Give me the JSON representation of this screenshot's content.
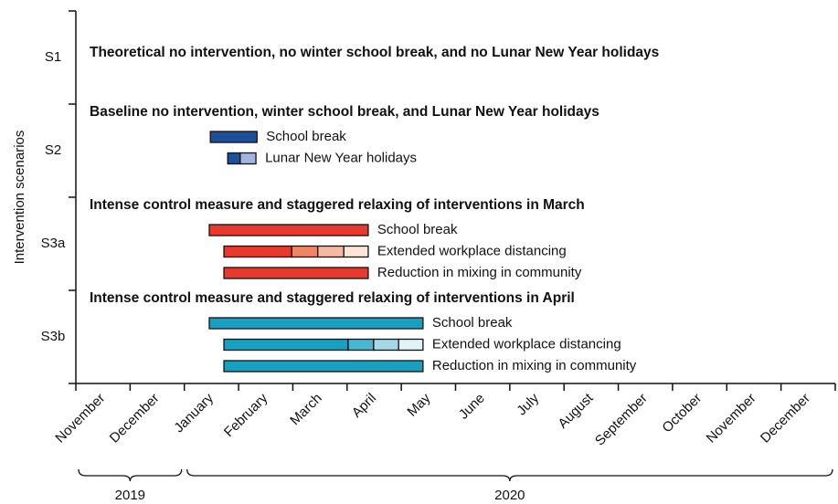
{
  "chart_data": {
    "type": "gantt",
    "ylabel": "Intervention scenarios",
    "categories": [
      "November",
      "December",
      "January",
      "February",
      "March",
      "April",
      "May",
      "June",
      "July",
      "August",
      "September",
      "October",
      "November",
      "December"
    ],
    "xlim": [
      0,
      14
    ],
    "xticks": [
      0,
      1,
      2,
      3,
      4,
      5,
      6,
      7,
      8,
      9,
      10,
      11,
      12,
      13,
      14
    ],
    "years": [
      {
        "label": "2019",
        "start": 0,
        "end": 2
      },
      {
        "label": "2020",
        "start": 2,
        "end": 14
      }
    ],
    "scenarios": [
      {
        "label": "S1",
        "title": "Theoretical no intervention, no winter school break, and no Lunar New Year holidays",
        "bars": []
      },
      {
        "label": "S2",
        "title": "Baseline no intervention, winter school break, and Lunar New Year holidays",
        "bars": [
          {
            "name": "School break",
            "edges": [
              2.48,
              3.34
            ],
            "colors": [
              "#1d4f9a"
            ]
          },
          {
            "name": "Lunar New Year holidays",
            "edges": [
              2.8,
              3.03,
              3.32
            ],
            "colors": [
              "#1d4f9a",
              "#a3b5de"
            ]
          }
        ]
      },
      {
        "label": "S3a",
        "title": "Intense control measure and staggered relaxing of interventions in March",
        "bars": [
          {
            "name": "School break",
            "edges": [
              2.46,
              5.39
            ],
            "colors": [
              "#e8392c"
            ]
          },
          {
            "name": "Extended workplace distancing",
            "edges": [
              2.73,
              3.98,
              4.46,
              4.94,
              5.39
            ],
            "colors": [
              "#e8392c",
              "#ef8563",
              "#f5b8a2",
              "#fce4da"
            ]
          },
          {
            "name": "Reduction in mixing in community",
            "edges": [
              2.73,
              5.39
            ],
            "colors": [
              "#e8392c"
            ]
          }
        ]
      },
      {
        "label": "S3b",
        "title": "Intense control measure and staggered relaxing of interventions in April",
        "bars": [
          {
            "name": "School break",
            "edges": [
              2.46,
              6.4
            ],
            "colors": [
              "#19a0c0"
            ]
          },
          {
            "name": "Extended workplace distancing",
            "edges": [
              2.73,
              5.02,
              5.49,
              5.95,
              6.4
            ],
            "colors": [
              "#19a0c0",
              "#4bb6d1",
              "#a5d8e6",
              "#e2f3f7"
            ]
          },
          {
            "name": "Reduction in mixing in community",
            "edges": [
              2.73,
              6.4
            ],
            "colors": [
              "#19a0c0"
            ]
          }
        ]
      }
    ]
  }
}
